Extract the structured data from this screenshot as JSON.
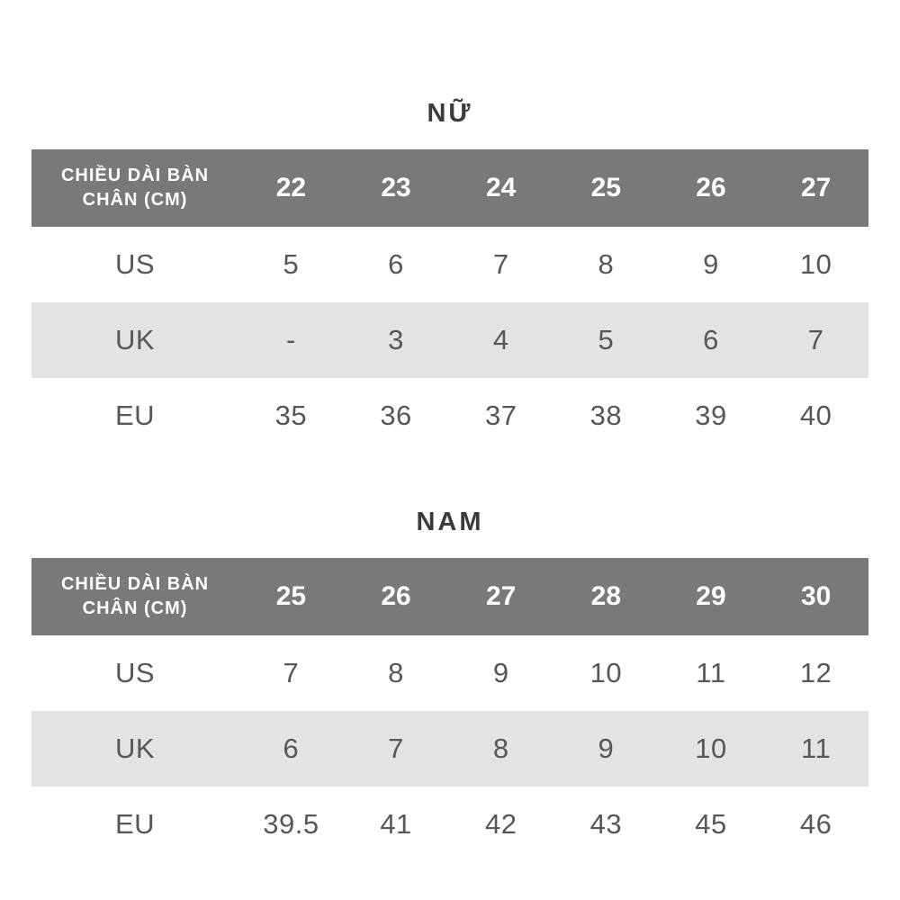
{
  "colors": {
    "header_bg": "#797979",
    "header_text": "#ffffff",
    "stripe_bg": "#e3e3e3",
    "title_text": "#3b3b3b",
    "body_text": "#575757",
    "page_bg": "#ffffff"
  },
  "tables": [
    {
      "title": "NỮ",
      "header_label": "CHIỀU DÀI BÀN CHÂN (CM)",
      "columns": [
        "22",
        "23",
        "24",
        "25",
        "26",
        "27"
      ],
      "rows": [
        {
          "label": "US",
          "values": [
            "5",
            "6",
            "7",
            "8",
            "9",
            "10"
          ]
        },
        {
          "label": "UK",
          "values": [
            "-",
            "3",
            "4",
            "5",
            "6",
            "7"
          ]
        },
        {
          "label": "EU",
          "values": [
            "35",
            "36",
            "37",
            "38",
            "39",
            "40"
          ]
        }
      ]
    },
    {
      "title": "NAM",
      "header_label": "CHIỀU DÀI BÀN CHÂN (CM)",
      "columns": [
        "25",
        "26",
        "27",
        "28",
        "29",
        "30"
      ],
      "rows": [
        {
          "label": "US",
          "values": [
            "7",
            "8",
            "9",
            "10",
            "11",
            "12"
          ]
        },
        {
          "label": "UK",
          "values": [
            "6",
            "7",
            "8",
            "9",
            "10",
            "11"
          ]
        },
        {
          "label": "EU",
          "values": [
            "39.5",
            "41",
            "42",
            "43",
            "45",
            "46"
          ]
        }
      ]
    }
  ]
}
